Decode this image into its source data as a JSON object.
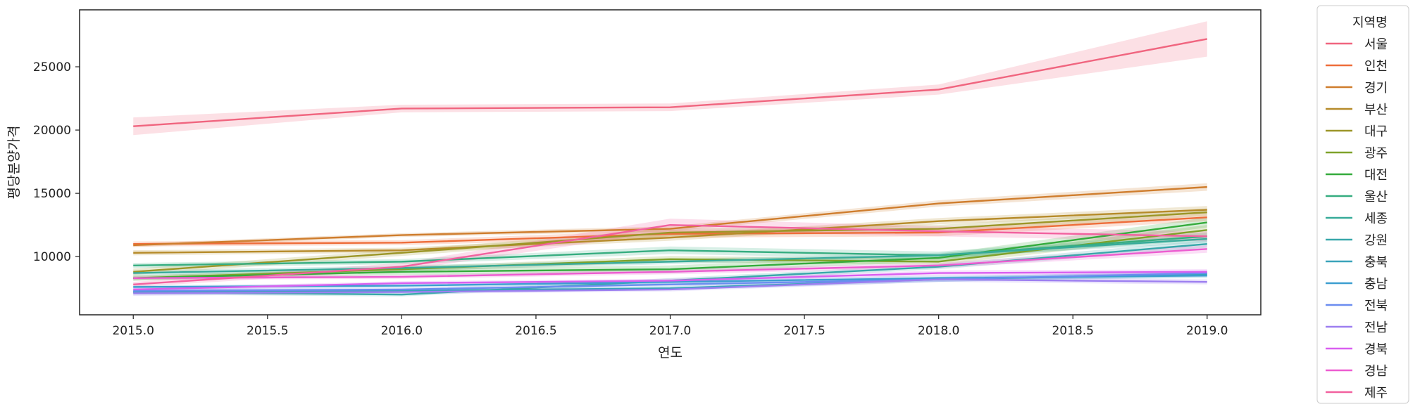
{
  "chart_data": {
    "type": "line",
    "title": "",
    "xlabel": "연도",
    "ylabel": "평당분양가격",
    "x": [
      2015,
      2016,
      2017,
      2018,
      2019
    ],
    "xlim": [
      2014.8,
      2019.2
    ],
    "ylim": [
      5400,
      29500
    ],
    "xticks": [
      "2015.0",
      "2015.5",
      "2016.0",
      "2016.5",
      "2017.0",
      "2017.5",
      "2018.0",
      "2018.5",
      "2019.0"
    ],
    "yticks": [
      "10000",
      "15000",
      "20000",
      "25000"
    ],
    "grid": false,
    "legend_placement": "outside-right",
    "legend_title": "지역명",
    "series": [
      {
        "name": "서울",
        "color": "#f0657f",
        "values": [
          20300,
          21700,
          21800,
          23200,
          27200
        ],
        "ci": [
          700,
          300,
          300,
          400,
          1400
        ]
      },
      {
        "name": "인천",
        "color": "#ee6d3a",
        "values": [
          11000,
          11100,
          11800,
          11900,
          13100
        ],
        "ci": [
          200,
          200,
          300,
          300,
          300
        ]
      },
      {
        "name": "경기",
        "color": "#cf7d2d",
        "values": [
          10900,
          11700,
          12200,
          14200,
          15500
        ],
        "ci": [
          150,
          150,
          200,
          250,
          300
        ]
      },
      {
        "name": "부산",
        "color": "#b68b2a",
        "values": [
          10300,
          10500,
          11500,
          12800,
          13700
        ],
        "ci": [
          200,
          200,
          250,
          250,
          300
        ]
      },
      {
        "name": "대구",
        "color": "#9c9628",
        "values": [
          8800,
          10300,
          11900,
          12200,
          13500
        ],
        "ci": [
          250,
          250,
          300,
          300,
          300
        ]
      },
      {
        "name": "광주",
        "color": "#7fa22a",
        "values": [
          8300,
          9000,
          9800,
          9600,
          12100
        ],
        "ci": [
          200,
          200,
          250,
          250,
          400
        ]
      },
      {
        "name": "대전",
        "color": "#35ab3c",
        "values": [
          8300,
          8800,
          9000,
          9900,
          12700
        ],
        "ci": [
          200,
          250,
          300,
          300,
          400
        ]
      },
      {
        "name": "울산",
        "color": "#36ad80",
        "values": [
          9300,
          9600,
          10500,
          10100,
          11600
        ],
        "ci": [
          200,
          200,
          300,
          300,
          300
        ]
      },
      {
        "name": "세종",
        "color": "#37ab99",
        "values": [
          8700,
          9100,
          9600,
          10100,
          11400
        ],
        "ci": [
          200,
          200,
          200,
          200,
          300
        ]
      },
      {
        "name": "강원",
        "color": "#38a7aa",
        "values": [
          7200,
          7000,
          8100,
          9200,
          11000
        ],
        "ci": [
          200,
          150,
          200,
          200,
          300
        ]
      },
      {
        "name": "충북",
        "color": "#3aa3ba",
        "values": [
          7200,
          7300,
          7500,
          8200,
          8600
        ],
        "ci": [
          150,
          150,
          150,
          200,
          200
        ]
      },
      {
        "name": "충남",
        "color": "#3c9ed0",
        "values": [
          7600,
          7700,
          8000,
          8300,
          8500
        ],
        "ci": [
          150,
          150,
          150,
          200,
          200
        ]
      },
      {
        "name": "전북",
        "color": "#6b8df0",
        "values": [
          7300,
          7400,
          7800,
          8200,
          8700
        ],
        "ci": [
          150,
          150,
          150,
          200,
          200
        ]
      },
      {
        "name": "전남",
        "color": "#9d7ff0",
        "values": [
          7100,
          7200,
          7400,
          8200,
          8000
        ],
        "ci": [
          200,
          150,
          150,
          200,
          200
        ]
      },
      {
        "name": "경북",
        "color": "#d95ff0",
        "values": [
          7400,
          7900,
          8100,
          8700,
          8800
        ],
        "ci": [
          150,
          150,
          150,
          200,
          200
        ]
      },
      {
        "name": "경남",
        "color": "#ed5cd0",
        "values": [
          8300,
          8400,
          8800,
          9300,
          10600
        ],
        "ci": [
          150,
          150,
          200,
          200,
          300
        ]
      },
      {
        "name": "제주",
        "color": "#f2619f",
        "values": [
          7800,
          9200,
          12500,
          12000,
          11600
        ],
        "ci": [
          200,
          300,
          500,
          400,
          400
        ]
      }
    ]
  }
}
